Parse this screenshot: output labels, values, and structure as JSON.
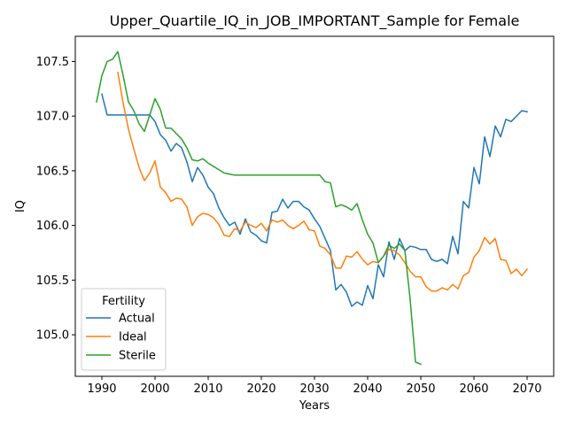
{
  "chart_data": {
    "type": "line",
    "title": "Upper_Quartile_IQ_in_JOB_IMPORTANT_Sample for Female",
    "xlabel": "Years",
    "ylabel": "IQ",
    "xlim": [
      1985,
      2075
    ],
    "ylim": [
      104.62,
      107.73
    ],
    "xticks": [
      1990,
      2000,
      2010,
      2020,
      2030,
      2040,
      2050,
      2060,
      2070
    ],
    "yticks": [
      105.0,
      105.5,
      106.0,
      106.5,
      107.0,
      107.5
    ],
    "ytick_labels": [
      "105.0",
      "105.5",
      "106.0",
      "106.5",
      "107.0",
      "107.5"
    ],
    "grid": false,
    "legend": {
      "title": "Fertility",
      "placement": "lower-left"
    },
    "series": [
      {
        "name": "Actual",
        "color": "#1f77b4",
        "x": [
          1990,
          1991,
          1992,
          1993,
          1994,
          1995,
          1996,
          1997,
          1998,
          1999,
          2000,
          2001,
          2002,
          2003,
          2004,
          2005,
          2006,
          2007,
          2008,
          2009,
          2010,
          2011,
          2012,
          2013,
          2014,
          2015,
          2016,
          2017,
          2018,
          2019,
          2020,
          2021,
          2022,
          2023,
          2024,
          2025,
          2026,
          2027,
          2028,
          2029,
          2030,
          2031,
          2032,
          2033,
          2034,
          2035,
          2036,
          2037,
          2038,
          2039,
          2040,
          2041,
          2042,
          2043,
          2044,
          2045,
          2046,
          2047,
          2048,
          2049,
          2050,
          2051,
          2052,
          2053,
          2054,
          2055,
          2056,
          2057,
          2058,
          2059,
          2060,
          2061,
          2062,
          2063,
          2064,
          2065,
          2066,
          2067,
          2068,
          2069,
          2070
        ],
        "values": [
          107.2,
          107.01,
          107.01,
          107.01,
          107.01,
          107.01,
          107.01,
          107.01,
          107.01,
          107.01,
          106.95,
          106.83,
          106.78,
          106.68,
          106.75,
          106.71,
          106.58,
          106.4,
          106.53,
          106.46,
          106.35,
          106.29,
          106.16,
          106.07,
          106.0,
          106.03,
          105.92,
          106.06,
          105.94,
          105.91,
          105.86,
          105.84,
          106.12,
          106.13,
          106.24,
          106.16,
          106.22,
          106.22,
          106.17,
          106.14,
          106.06,
          105.99,
          105.88,
          105.77,
          105.41,
          105.46,
          105.39,
          105.26,
          105.3,
          105.27,
          105.45,
          105.33,
          105.64,
          105.53,
          105.85,
          105.69,
          105.88,
          105.77,
          105.81,
          105.8,
          105.78,
          105.78,
          105.69,
          105.67,
          105.69,
          105.65,
          105.9,
          105.74,
          106.22,
          106.16,
          106.53,
          106.38,
          106.81,
          106.63,
          106.91,
          106.81,
          106.97,
          106.95,
          107.0,
          107.05,
          107.04
        ]
      },
      {
        "name": "Ideal",
        "color": "#ff7f0e",
        "x": [
          1993,
          1994,
          1995,
          1996,
          1997,
          1998,
          1999,
          2000,
          2001,
          2002,
          2003,
          2004,
          2005,
          2006,
          2007,
          2008,
          2009,
          2010,
          2011,
          2012,
          2013,
          2014,
          2015,
          2016,
          2017,
          2018,
          2019,
          2020,
          2021,
          2022,
          2023,
          2024,
          2025,
          2026,
          2027,
          2028,
          2029,
          2030,
          2031,
          2032,
          2033,
          2034,
          2035,
          2036,
          2037,
          2038,
          2039,
          2040,
          2041,
          2042,
          2043,
          2044,
          2045,
          2046,
          2047,
          2048,
          2049,
          2050,
          2051,
          2052,
          2053,
          2054,
          2055,
          2056,
          2057,
          2058,
          2059,
          2060,
          2061,
          2062,
          2063,
          2064,
          2065,
          2066,
          2067,
          2068,
          2069,
          2070
        ],
        "values": [
          107.4,
          107.12,
          106.88,
          106.7,
          106.53,
          106.41,
          106.48,
          106.59,
          106.35,
          106.3,
          106.22,
          106.25,
          106.24,
          106.17,
          106.0,
          106.08,
          106.11,
          106.1,
          106.07,
          106.01,
          105.91,
          105.9,
          105.97,
          105.95,
          106.03,
          106.0,
          105.98,
          106.02,
          105.95,
          106.05,
          106.03,
          106.05,
          106.0,
          105.97,
          106.0,
          106.04,
          105.96,
          105.95,
          105.81,
          105.79,
          105.73,
          105.61,
          105.61,
          105.72,
          105.71,
          105.76,
          105.69,
          105.64,
          105.67,
          105.66,
          105.72,
          105.78,
          105.77,
          105.73,
          105.66,
          105.58,
          105.53,
          105.53,
          105.44,
          105.4,
          105.4,
          105.43,
          105.41,
          105.46,
          105.42,
          105.54,
          105.57,
          105.71,
          105.77,
          105.89,
          105.83,
          105.88,
          105.69,
          105.68,
          105.56,
          105.6,
          105.54,
          105.6
        ]
      },
      {
        "name": "Sterile",
        "color": "#2ca02c",
        "x": [
          1989,
          1990,
          1991,
          1992,
          1993,
          1994,
          1995,
          1996,
          1997,
          1998,
          1999,
          2000,
          2001,
          2002,
          2003,
          2004,
          2005,
          2006,
          2007,
          2008,
          2009,
          2010,
          2011,
          2012,
          2013,
          2014,
          2015,
          2016,
          2017,
          2018,
          2019,
          2020,
          2021,
          2022,
          2023,
          2024,
          2025,
          2026,
          2027,
          2028,
          2029,
          2030,
          2031,
          2032,
          2033,
          2034,
          2035,
          2036,
          2037,
          2038,
          2039,
          2040,
          2041,
          2042,
          2043,
          2044,
          2045,
          2046,
          2047,
          2048,
          2049,
          2050
        ],
        "values": [
          107.13,
          107.37,
          107.5,
          107.52,
          107.59,
          107.37,
          107.13,
          107.05,
          106.93,
          106.86,
          107.01,
          107.16,
          107.06,
          106.89,
          106.89,
          106.84,
          106.79,
          106.71,
          106.6,
          106.59,
          106.61,
          106.57,
          106.54,
          106.51,
          106.48,
          106.47,
          106.46,
          106.46,
          106.46,
          106.46,
          106.46,
          106.46,
          106.46,
          106.46,
          106.46,
          106.46,
          106.46,
          106.46,
          106.46,
          106.46,
          106.46,
          106.46,
          106.46,
          106.4,
          106.39,
          106.17,
          106.19,
          106.17,
          106.14,
          106.2,
          106.05,
          105.92,
          105.84,
          105.66,
          105.72,
          105.82,
          105.79,
          105.83,
          105.77,
          105.32,
          104.75,
          104.73
        ]
      }
    ]
  }
}
